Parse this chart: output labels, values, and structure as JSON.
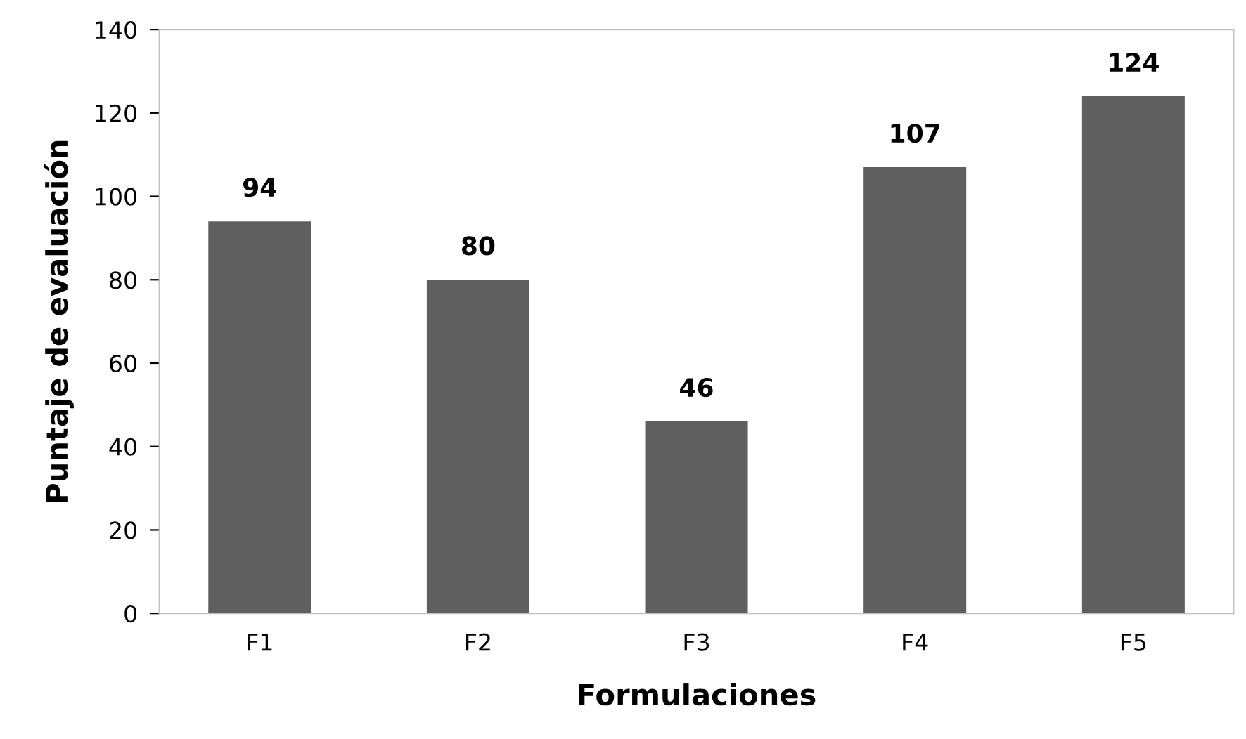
{
  "chart_data": {
    "type": "bar",
    "xlabel": "Formulaciones",
    "ylabel": "Puntaje de evaluación",
    "categories": [
      "F1",
      "F2",
      "F3",
      "F4",
      "F5"
    ],
    "values": [
      94,
      80,
      46,
      107,
      124
    ],
    "color": "#5f5f5f",
    "ylim": [
      0,
      140
    ],
    "yticks": [
      0,
      20,
      40,
      60,
      80,
      100,
      120,
      140
    ],
    "grid": false,
    "data_labels": true
  }
}
